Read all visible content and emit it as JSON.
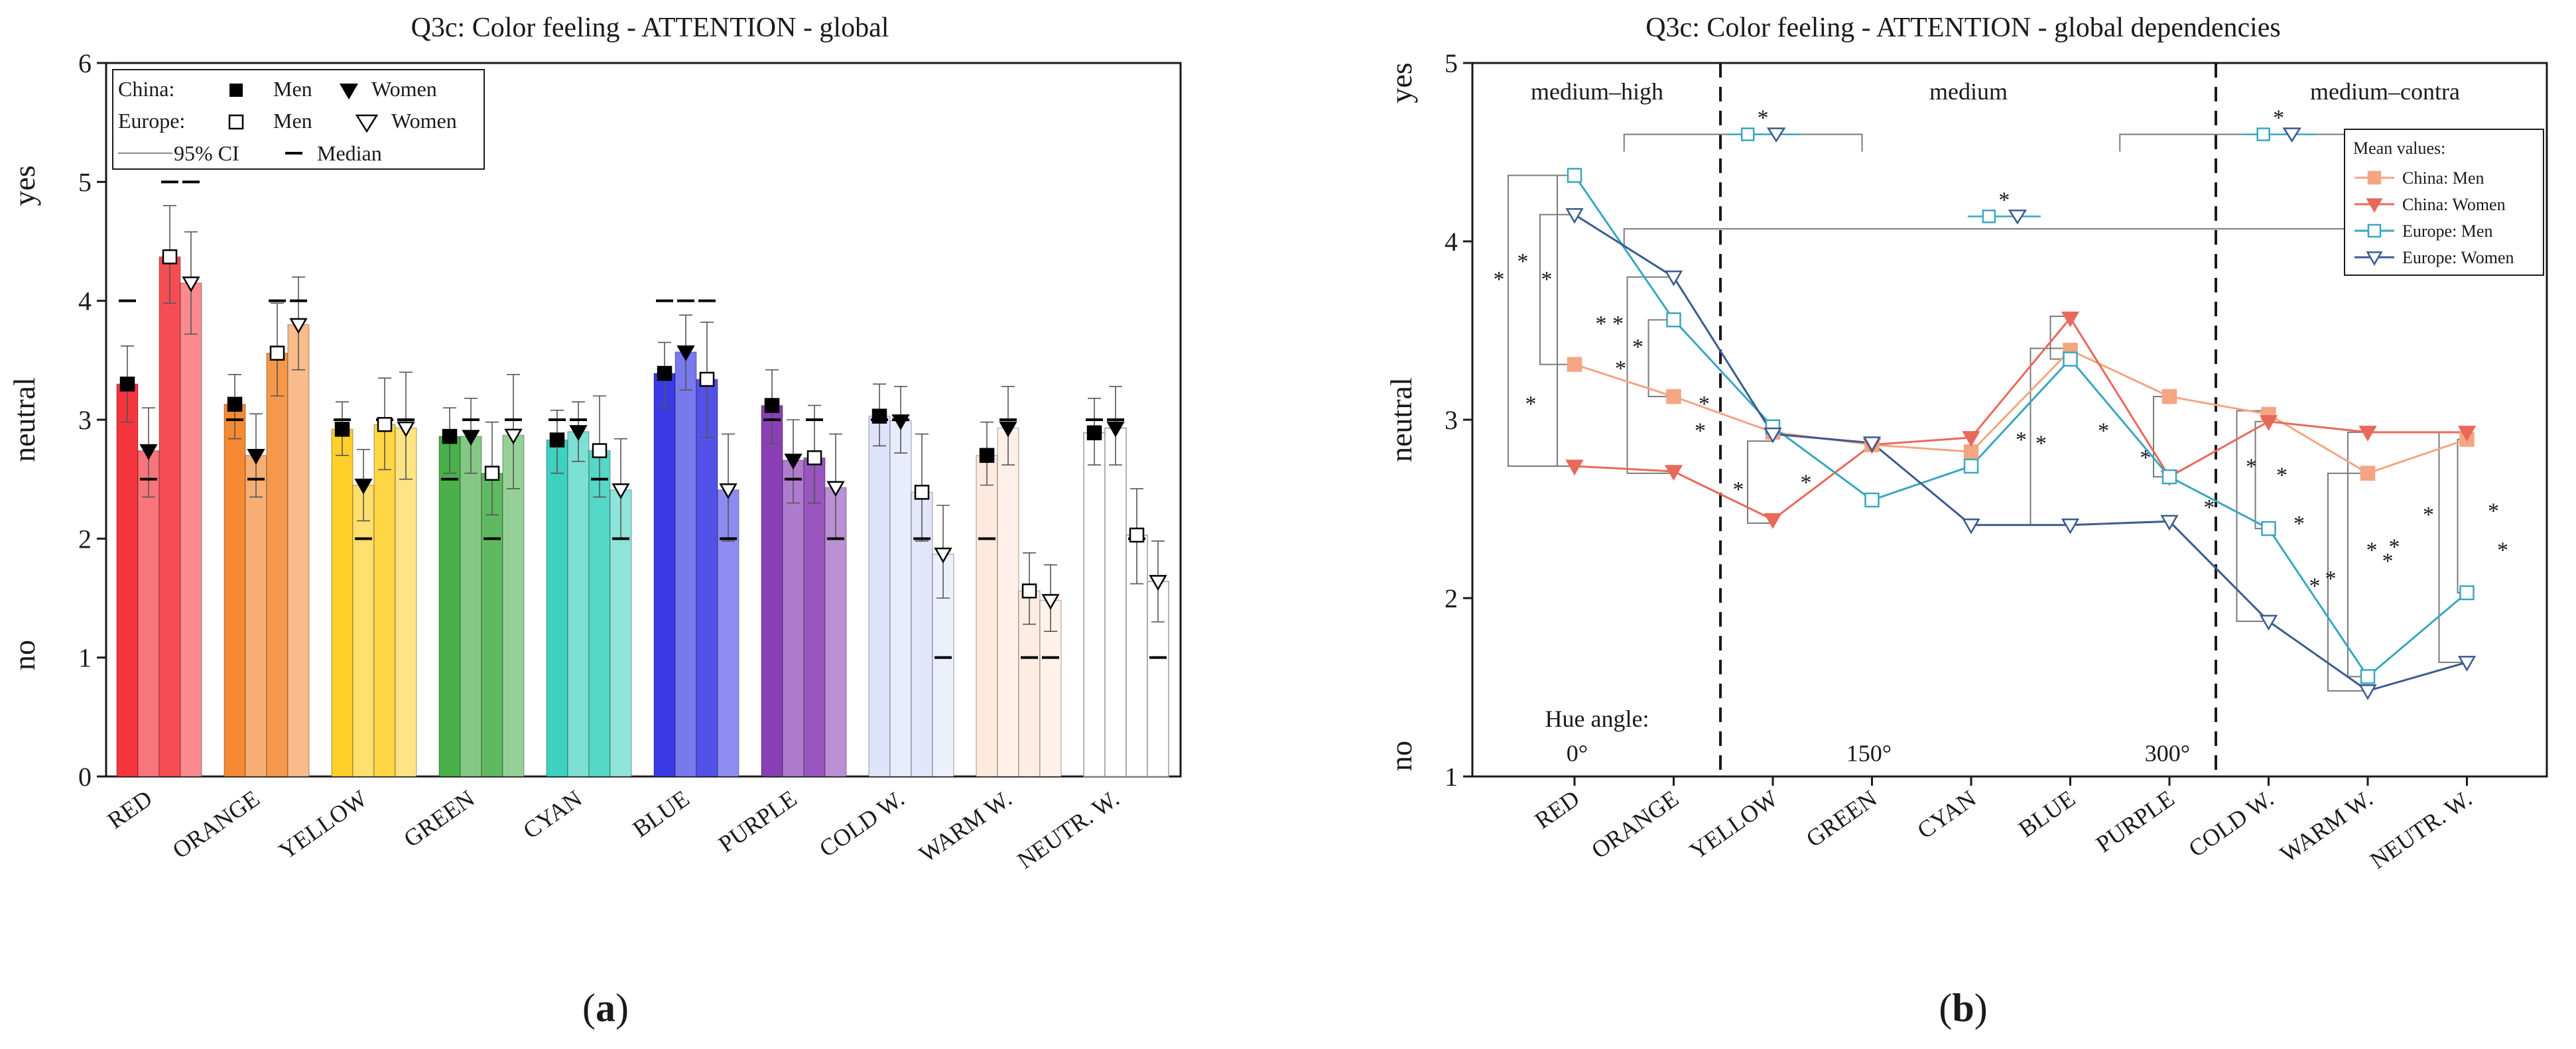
{
  "colors": {
    "china_men": "#f4a582",
    "china_women": "#e8695a",
    "europe_men": "#3aa6c0",
    "europe_women": "#3b5a90",
    "axis": "#1a1a1a",
    "bracket": "#7a7a7a"
  },
  "chart_data": [
    {
      "type": "bar",
      "panel_label": "(a)",
      "panel_letter": "a",
      "title": "Q3c: Color feeling - ATTENTION -  global",
      "ylabel_labels": [
        "no",
        "neutral",
        "yes"
      ],
      "ylim": [
        0,
        6
      ],
      "yticks": [
        0,
        1,
        2,
        3,
        4,
        5,
        6
      ],
      "categories": [
        "RED",
        "ORANGE",
        "YELLOW",
        "GREEN",
        "CYAN",
        "BLUE",
        "PURPLE",
        "COLD W.",
        "WARM W.",
        "NEUTR. W."
      ],
      "category_colors": [
        "#f5353d",
        "#f58a33",
        "#ffd02a",
        "#49b04a",
        "#3fd1c0",
        "#3a3ae6",
        "#8a3fb5",
        "#dfe3fa",
        "#fde9dd",
        "#ffffff"
      ],
      "series": [
        {
          "name": "China: Men",
          "marker": "filled-square",
          "values": [
            3.3,
            3.13,
            2.92,
            2.86,
            2.83,
            3.39,
            3.12,
            3.03,
            2.7,
            2.89
          ],
          "ci_low": [
            2.98,
            2.84,
            2.7,
            2.55,
            2.55,
            3.1,
            2.8,
            2.78,
            2.45,
            2.62
          ],
          "ci_high": [
            3.62,
            3.38,
            3.15,
            3.1,
            3.08,
            3.65,
            3.42,
            3.3,
            2.98,
            3.18
          ],
          "median": [
            4,
            3,
            3,
            2.5,
            3,
            4,
            3,
            3,
            2,
            3
          ]
        },
        {
          "name": "China: Women",
          "marker": "filled-triangle",
          "values": [
            2.74,
            2.7,
            2.45,
            2.86,
            2.9,
            3.57,
            2.66,
            2.99,
            2.93,
            2.93
          ],
          "ci_low": [
            2.35,
            2.35,
            2.15,
            2.55,
            2.65,
            3.25,
            2.3,
            2.72,
            2.62,
            2.62
          ],
          "ci_high": [
            3.1,
            3.05,
            2.75,
            3.18,
            3.15,
            3.88,
            3.0,
            3.28,
            3.28,
            3.28
          ],
          "median": [
            2.5,
            2.5,
            2,
            3,
            3,
            4,
            2.5,
            3,
            3,
            3
          ]
        },
        {
          "name": "Europe: Men",
          "marker": "open-square",
          "values": [
            4.37,
            3.56,
            2.96,
            2.55,
            2.74,
            3.34,
            2.68,
            2.39,
            1.56,
            2.03
          ],
          "ci_low": [
            3.98,
            3.2,
            2.58,
            2.2,
            2.35,
            2.85,
            2.3,
            1.98,
            1.28,
            1.62
          ],
          "ci_high": [
            4.8,
            3.98,
            3.35,
            2.98,
            3.2,
            3.82,
            3.12,
            2.88,
            1.88,
            2.42
          ],
          "median": [
            5,
            4,
            3,
            2,
            2.5,
            4,
            3,
            2,
            1,
            2
          ]
        },
        {
          "name": "Europe: Women",
          "marker": "open-triangle",
          "values": [
            4.15,
            3.8,
            2.93,
            2.87,
            2.41,
            2.41,
            2.43,
            1.87,
            1.48,
            1.64
          ],
          "ci_low": [
            3.72,
            3.42,
            2.5,
            2.42,
            2.0,
            1.98,
            2.0,
            1.5,
            1.22,
            1.3
          ],
          "ci_high": [
            4.58,
            4.2,
            3.4,
            3.38,
            2.84,
            2.88,
            2.88,
            2.28,
            1.78,
            1.98
          ],
          "median": [
            5,
            4,
            3,
            3,
            2,
            2,
            2,
            1,
            1,
            1
          ]
        }
      ],
      "legend": {
        "row1_label": "China:",
        "row2_label": "Europe:",
        "men": "Men",
        "women": "Women",
        "ci": "95% CI",
        "median": "Median",
        "placement": "top-left"
      }
    },
    {
      "type": "line",
      "panel_label": "(b)",
      "panel_letter": "b",
      "title": "Q3c: Color feeling - ATTENTION - global dependencies",
      "ylabel_labels": [
        "no",
        "neutral",
        "yes"
      ],
      "ylim": [
        1,
        5
      ],
      "yticks": [
        1,
        2,
        3,
        4,
        5
      ],
      "categories": [
        "RED",
        "ORANGE",
        "YELLOW",
        "GREEN",
        "CYAN",
        "BLUE",
        "PURPLE",
        "COLD W.",
        "WARM W.",
        "NEUTR. W."
      ],
      "region_labels": [
        "medium–high",
        "medium",
        "medium–contra"
      ],
      "hue_angle_label": "Hue angle:",
      "hue_ticks": [
        "0°",
        "150°",
        "300°"
      ],
      "significance_mark": "*",
      "legend_title": "Mean values:",
      "legend_placement": "top-right",
      "series": [
        {
          "name": "China: Men",
          "values": [
            3.31,
            3.13,
            2.93,
            2.86,
            2.82,
            3.39,
            3.13,
            3.03,
            2.7,
            2.89
          ]
        },
        {
          "name": "China: Women",
          "values": [
            2.74,
            2.71,
            2.44,
            2.86,
            2.9,
            3.57,
            2.68,
            2.99,
            2.93,
            2.93
          ]
        },
        {
          "name": "Europe: Men",
          "values": [
            4.37,
            3.56,
            2.96,
            2.55,
            2.74,
            3.34,
            2.68,
            2.39,
            1.56,
            2.03
          ]
        },
        {
          "name": "Europe: Women",
          "values": [
            4.15,
            3.8,
            2.92,
            2.87,
            2.41,
            2.41,
            2.43,
            1.87,
            1.48,
            1.64
          ]
        }
      ]
    }
  ]
}
